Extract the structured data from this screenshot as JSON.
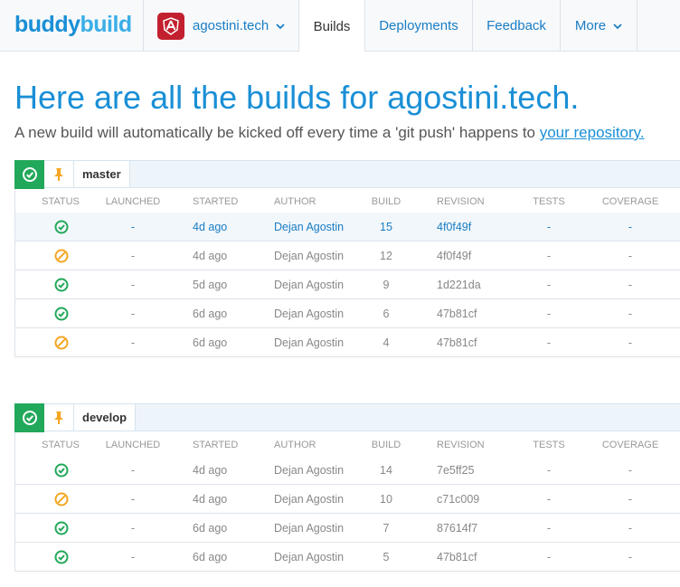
{
  "nav": {
    "logo_part1": "buddy",
    "logo_part2": "build",
    "app_name": "agostini.tech",
    "tabs": [
      "Builds",
      "Deployments",
      "Feedback",
      "More"
    ]
  },
  "header": {
    "title": "Here are all the builds for agostini.tech.",
    "subtitle_prefix": "A new build will automatically be kicked off every time a 'git push' happens to ",
    "subtitle_link": "your repository."
  },
  "columns": [
    "STATUS",
    "LAUNCHED",
    "STARTED",
    "AUTHOR",
    "BUILD",
    "REVISION",
    "TESTS",
    "COVERAGE"
  ],
  "colors": {
    "success": "#22a85a",
    "cancelled": "#f5a623",
    "accent": "#1a8fd6"
  },
  "branches": [
    {
      "name": "master",
      "builds": [
        {
          "status": "success",
          "launched": "-",
          "started": "4d ago",
          "author": "Dejan Agostin",
          "build": "15",
          "revision": "4f0f49f",
          "tests": "-",
          "coverage": "-"
        },
        {
          "status": "cancelled",
          "launched": "-",
          "started": "4d ago",
          "author": "Dejan Agostin",
          "build": "12",
          "revision": "4f0f49f",
          "tests": "-",
          "coverage": "-"
        },
        {
          "status": "success",
          "launched": "-",
          "started": "5d ago",
          "author": "Dejan Agostin",
          "build": "9",
          "revision": "1d221da",
          "tests": "-",
          "coverage": "-"
        },
        {
          "status": "success",
          "launched": "-",
          "started": "6d ago",
          "author": "Dejan Agostin",
          "build": "6",
          "revision": "47b81cf",
          "tests": "-",
          "coverage": "-"
        },
        {
          "status": "cancelled",
          "launched": "-",
          "started": "6d ago",
          "author": "Dejan Agostin",
          "build": "4",
          "revision": "47b81cf",
          "tests": "-",
          "coverage": "-"
        }
      ]
    },
    {
      "name": "develop",
      "builds": [
        {
          "status": "success",
          "launched": "-",
          "started": "4d ago",
          "author": "Dejan Agostin",
          "build": "14",
          "revision": "7e5ff25",
          "tests": "-",
          "coverage": "-"
        },
        {
          "status": "cancelled",
          "launched": "-",
          "started": "4d ago",
          "author": "Dejan Agostin",
          "build": "10",
          "revision": "c71c009",
          "tests": "-",
          "coverage": "-"
        },
        {
          "status": "success",
          "launched": "-",
          "started": "6d ago",
          "author": "Dejan Agostin",
          "build": "7",
          "revision": "87614f7",
          "tests": "-",
          "coverage": "-"
        },
        {
          "status": "success",
          "launched": "-",
          "started": "6d ago",
          "author": "Dejan Agostin",
          "build": "5",
          "revision": "47b81cf",
          "tests": "-",
          "coverage": "-"
        }
      ]
    }
  ]
}
